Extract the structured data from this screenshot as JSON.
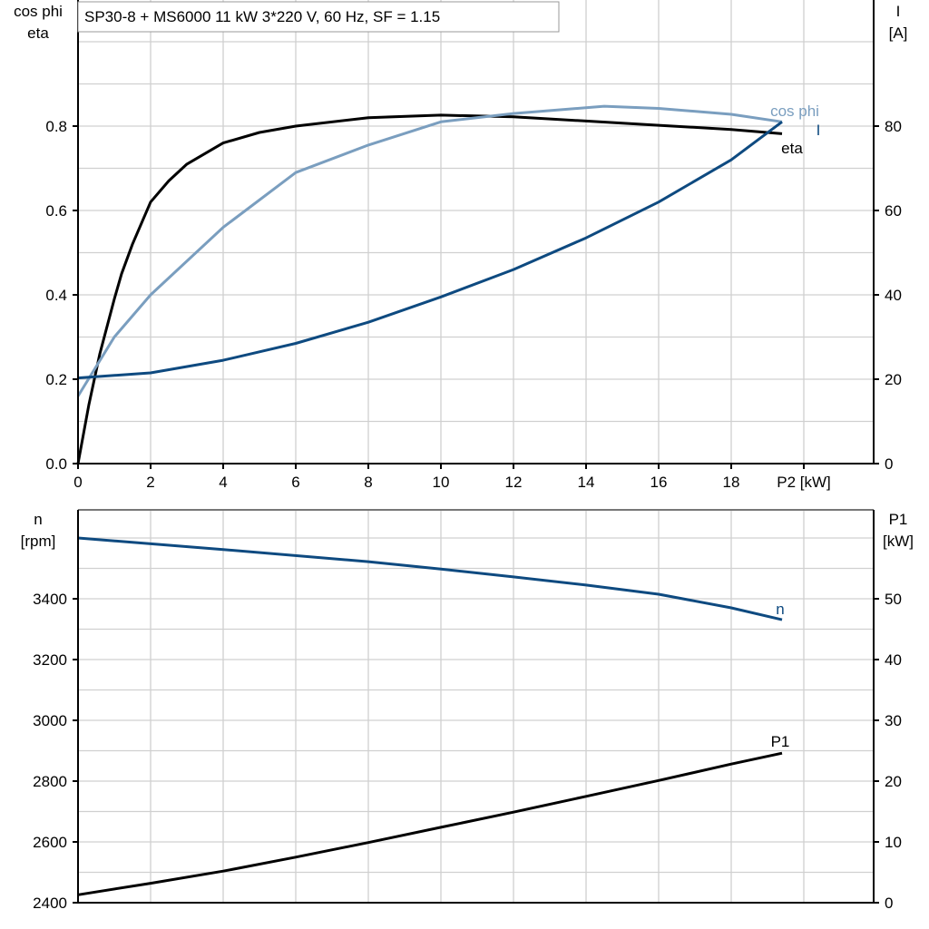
{
  "title": "SP30-8 + MS6000   11 kW   3*220 V, 60 Hz, SF = 1.15",
  "colors": {
    "eta": "#000000",
    "cos_phi": "#7a9ebf",
    "current": "#0e4a80",
    "n": "#0e4a80",
    "P1": "#000000",
    "grid": "#d0d0d0"
  },
  "chart_data": [
    {
      "type": "line",
      "xlabel": "P2 [kW]",
      "ylabel_left": [
        "cos phi",
        "eta"
      ],
      "ylabel_right": [
        "I",
        "[A]"
      ],
      "xlim": [
        0,
        21.9
      ],
      "ylim_left": [
        0,
        1.1
      ],
      "ylim_right": [
        0,
        110
      ],
      "x_ticks": [
        "0",
        "2",
        "4",
        "6",
        "8",
        "10",
        "12",
        "14",
        "16",
        "18"
      ],
      "y_ticks_left": [
        "0.0",
        "0.2",
        "0.4",
        "0.6",
        "0.8"
      ],
      "y_ticks_right": [
        "0",
        "20",
        "40",
        "60",
        "80"
      ],
      "grid": true,
      "series": [
        {
          "name": "eta",
          "axis": "left",
          "color_key": "eta",
          "x": [
            0,
            0.3,
            0.6,
            1,
            1.2,
            1.5,
            2,
            2.5,
            3,
            4,
            5,
            6,
            8,
            10,
            12,
            14,
            16,
            18,
            19.4
          ],
          "y": [
            0,
            0.14,
            0.26,
            0.39,
            0.45,
            0.52,
            0.62,
            0.67,
            0.71,
            0.76,
            0.785,
            0.8,
            0.82,
            0.826,
            0.822,
            0.812,
            0.802,
            0.792,
            0.782
          ]
        },
        {
          "name": "cos phi",
          "axis": "left",
          "color_key": "cos_phi",
          "x": [
            0,
            1,
            2,
            4,
            6,
            8,
            10,
            12,
            14.5,
            16,
            18,
            19.4
          ],
          "y": [
            0.16,
            0.3,
            0.4,
            0.56,
            0.69,
            0.755,
            0.81,
            0.83,
            0.847,
            0.842,
            0.828,
            0.81
          ]
        },
        {
          "name": "I",
          "axis": "right",
          "color_key": "current",
          "x": [
            0,
            2,
            4,
            6,
            8,
            10,
            12,
            14,
            16,
            18,
            19.4
          ],
          "y": [
            20.3,
            21.5,
            24.5,
            28.5,
            33.5,
            39.5,
            46,
            53.5,
            62,
            72,
            81
          ]
        }
      ]
    },
    {
      "type": "line",
      "ylabel_left": [
        "n",
        "[rpm]"
      ],
      "ylabel_right": [
        "P1",
        "[kW]"
      ],
      "xlim": [
        0,
        21.9
      ],
      "ylim_left": [
        2400,
        3700
      ],
      "ylim_right": [
        0,
        65
      ],
      "y_ticks_left": [
        "2400",
        "2600",
        "2800",
        "3000",
        "3200",
        "3400"
      ],
      "y_ticks_right": [
        "0",
        "10",
        "20",
        "30",
        "40",
        "50"
      ],
      "grid": true,
      "series": [
        {
          "name": "n",
          "axis": "left",
          "color_key": "n",
          "x": [
            0,
            4,
            8,
            10,
            12,
            14,
            16,
            18,
            19.4
          ],
          "y": [
            3600,
            3562,
            3522,
            3498,
            3472,
            3445,
            3415,
            3370,
            3331
          ]
        },
        {
          "name": "P1",
          "axis": "right",
          "color_key": "P1",
          "x": [
            0,
            2,
            4,
            6,
            8,
            10,
            12,
            14,
            16,
            18,
            19.4
          ],
          "y": [
            1.3,
            3.2,
            5.2,
            7.5,
            9.9,
            12.4,
            14.9,
            17.5,
            20.1,
            22.8,
            24.6
          ]
        }
      ]
    }
  ]
}
